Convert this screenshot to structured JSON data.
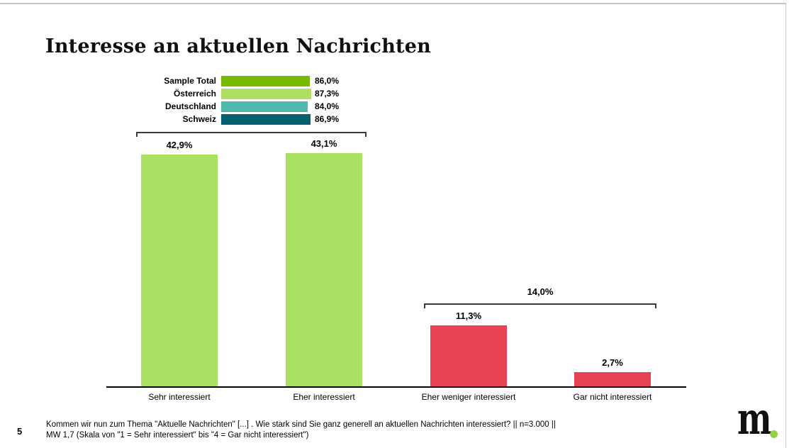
{
  "slide": {
    "title": "Interesse an aktuellen Nachrichten",
    "page_number": "5",
    "footer_line1": "Kommen wir nun zum Thema \"Aktuelle Nachrichten\" [...] . Wie stark sind Sie ganz generell an aktuellen Nachrichten interessiert? || n=3.000 ||",
    "footer_line2": "MW 1,7 (Skala von \"1 = Sehr interessiert\" bis \"4 = Gar nicht interessiert\")",
    "logo_text": "m"
  },
  "colors": {
    "main_green": "#a9e162",
    "main_red": "#e84355",
    "axis_black": "#000000",
    "border_gray": "#c6c6c6",
    "logo_green": "#92d050"
  },
  "chart_data": {
    "type": "bar",
    "title": "Interesse an aktuellen Nachrichten",
    "categories": [
      "Sehr interessiert",
      "Eher interessiert",
      "Eher weniger interessiert",
      "Gar nicht interessiert"
    ],
    "values": [
      42.9,
      43.1,
      11.3,
      2.7
    ],
    "value_labels": [
      "42,9%",
      "43,1%",
      "11,3%",
      "2,7%"
    ],
    "bar_colors": [
      "#a9e162",
      "#a9e162",
      "#e84355",
      "#e84355"
    ],
    "ylim": [
      0,
      45
    ],
    "grid": false,
    "legend_position": "none",
    "brackets": [
      {
        "label": "",
        "covers": [
          "Sehr interessiert",
          "Eher interessiert"
        ],
        "total": 86.0
      },
      {
        "label": "14,0%",
        "covers": [
          "Eher weniger interessiert",
          "Gar nicht interessiert"
        ],
        "total": 14.0
      }
    ],
    "summary_bars": {
      "type": "bar-horizontal",
      "note": "Top-2 share (sehr + eher interessiert) per group",
      "rows": [
        {
          "label": "Sample Total",
          "value": 86.0,
          "value_label": "86,0%",
          "color": "#76b900"
        },
        {
          "label": "Österreich",
          "value": 87.3,
          "value_label": "87,3%",
          "color": "#aede63"
        },
        {
          "label": "Deutschland",
          "value": 84.0,
          "value_label": "84,0%",
          "color": "#4fb9ab"
        },
        {
          "label": "Schweiz",
          "value": 86.9,
          "value_label": "86,9%",
          "color": "#05616e"
        }
      ]
    }
  }
}
